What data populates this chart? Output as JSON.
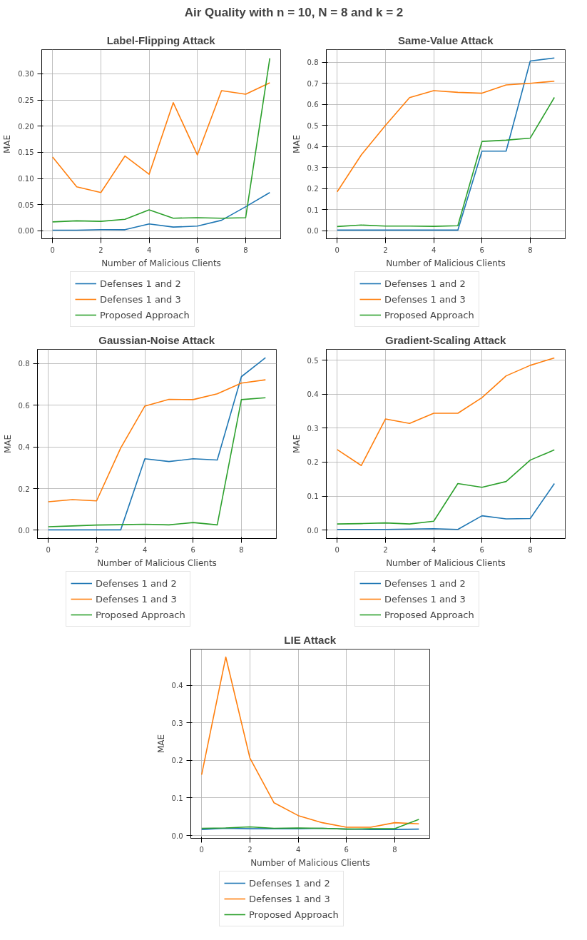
{
  "chart_data": [
    {
      "type": "other",
      "title": "Air Quality with n = 10, N = 8 and k = 2"
    },
    {
      "type": "line",
      "title": "Label-Flipping Attack",
      "xlabel": "Number of Malicious Clients",
      "ylabel": "MAE",
      "x": [
        0,
        1,
        2,
        3,
        4,
        5,
        6,
        7,
        8,
        9
      ],
      "xlim": [
        -0.45,
        9.45
      ],
      "xticks": [
        0,
        2,
        4,
        6,
        8
      ],
      "ylim": [
        -0.0153,
        0.3464
      ],
      "yticks": [
        {
          "value": 0,
          "label": "0.00"
        },
        {
          "value": 0.05,
          "label": "0.05"
        },
        {
          "value": 0.1,
          "label": "0.10"
        },
        {
          "value": 0.15,
          "label": "0.15"
        },
        {
          "value": 0.2,
          "label": "0.20"
        },
        {
          "value": 0.25,
          "label": "0.25"
        },
        {
          "value": 0.3,
          "label": "0.30"
        }
      ],
      "grid": true,
      "legend": "bottom",
      "series": [
        {
          "name": "Defenses 1 and 2",
          "color": "#1f77b4",
          "values": [
            0.001,
            0.001,
            0.002,
            0.002,
            0.013,
            0.007,
            0.009,
            0.02,
            0.046,
            0.073
          ]
        },
        {
          "name": "Defenses 1 and 3",
          "color": "#ff7f0e",
          "values": [
            0.141,
            0.084,
            0.073,
            0.143,
            0.108,
            0.245,
            0.145,
            0.268,
            0.261,
            0.283
          ]
        },
        {
          "name": "Proposed Approach",
          "color": "#2ca02c",
          "values": [
            0.017,
            0.019,
            0.018,
            0.022,
            0.04,
            0.024,
            0.025,
            0.024,
            0.025,
            0.33
          ]
        }
      ]
    },
    {
      "type": "line",
      "title": "Same-Value Attack",
      "xlabel": "Number of Malicious Clients",
      "ylabel": "MAE",
      "x": [
        0,
        1,
        2,
        3,
        4,
        5,
        6,
        7,
        8,
        9
      ],
      "xlim": [
        -0.45,
        9.45
      ],
      "xticks": [
        0,
        2,
        4,
        6,
        8
      ],
      "ylim": [
        -0.038,
        0.86
      ],
      "yticks": [
        {
          "value": 0,
          "label": "0.0"
        },
        {
          "value": 0.1,
          "label": "0.1"
        },
        {
          "value": 0.2,
          "label": "0.2"
        },
        {
          "value": 0.3,
          "label": "0.3"
        },
        {
          "value": 0.4,
          "label": "0.4"
        },
        {
          "value": 0.5,
          "label": "0.5"
        },
        {
          "value": 0.6,
          "label": "0.6"
        },
        {
          "value": 0.7,
          "label": "0.7"
        },
        {
          "value": 0.8,
          "label": "0.8"
        }
      ],
      "grid": true,
      "legend": "bottom",
      "series": [
        {
          "name": "Defenses 1 and 2",
          "color": "#1f77b4",
          "values": [
            0.003,
            0.003,
            0.003,
            0.003,
            0.003,
            0.003,
            0.378,
            0.378,
            0.806,
            0.82
          ]
        },
        {
          "name": "Defenses 1 and 3",
          "color": "#ff7f0e",
          "values": [
            0.185,
            0.36,
            0.5,
            0.632,
            0.665,
            0.657,
            0.653,
            0.692,
            0.7,
            0.71
          ]
        },
        {
          "name": "Proposed Approach",
          "color": "#2ca02c",
          "values": [
            0.02,
            0.027,
            0.022,
            0.022,
            0.021,
            0.024,
            0.424,
            0.43,
            0.44,
            0.633
          ]
        }
      ]
    },
    {
      "type": "line",
      "title": "Gaussian-Noise Attack",
      "xlabel": "Number of Malicious Clients",
      "ylabel": "MAE",
      "x": [
        0,
        1,
        2,
        3,
        4,
        5,
        6,
        7,
        8,
        9
      ],
      "xlim": [
        -0.45,
        9.45
      ],
      "xticks": [
        0,
        2,
        4,
        6,
        8
      ],
      "ylim": [
        -0.0395,
        0.868
      ],
      "yticks": [
        {
          "value": 0,
          "label": "0.0"
        },
        {
          "value": 0.2,
          "label": "0.2"
        },
        {
          "value": 0.4,
          "label": "0.4"
        },
        {
          "value": 0.6,
          "label": "0.6"
        },
        {
          "value": 0.8,
          "label": "0.8"
        }
      ],
      "grid": true,
      "legend": "bottom",
      "series": [
        {
          "name": "Defenses 1 and 2",
          "color": "#1f77b4",
          "values": [
            0.002,
            0.002,
            0.002,
            0.002,
            0.343,
            0.33,
            0.343,
            0.337,
            0.737,
            0.828
          ]
        },
        {
          "name": "Defenses 1 and 3",
          "color": "#ff7f0e",
          "values": [
            0.137,
            0.147,
            0.141,
            0.395,
            0.596,
            0.628,
            0.627,
            0.655,
            0.706,
            0.722
          ]
        },
        {
          "name": "Proposed Approach",
          "color": "#2ca02c",
          "values": [
            0.017,
            0.021,
            0.025,
            0.027,
            0.029,
            0.026,
            0.037,
            0.026,
            0.627,
            0.636
          ]
        }
      ]
    },
    {
      "type": "line",
      "title": "Gradient-Scaling Attack",
      "xlabel": "Number of Malicious Clients",
      "ylabel": "MAE",
      "x": [
        0,
        1,
        2,
        3,
        4,
        5,
        6,
        7,
        8,
        9
      ],
      "xlim": [
        -0.45,
        9.45
      ],
      "xticks": [
        0,
        2,
        4,
        6,
        8
      ],
      "ylim": [
        -0.0249,
        0.532
      ],
      "yticks": [
        {
          "value": 0,
          "label": "0.0"
        },
        {
          "value": 0.1,
          "label": "0.1"
        },
        {
          "value": 0.2,
          "label": "0.2"
        },
        {
          "value": 0.3,
          "label": "0.3"
        },
        {
          "value": 0.4,
          "label": "0.4"
        },
        {
          "value": 0.5,
          "label": "0.5"
        }
      ],
      "grid": true,
      "legend": "bottom",
      "series": [
        {
          "name": "Defenses 1 and 2",
          "color": "#1f77b4",
          "values": [
            0.002,
            0.002,
            0.002,
            0.003,
            0.004,
            0.002,
            0.042,
            0.033,
            0.034,
            0.137
          ]
        },
        {
          "name": "Defenses 1 and 3",
          "color": "#ff7f0e",
          "values": [
            0.237,
            0.19,
            0.327,
            0.314,
            0.344,
            0.344,
            0.39,
            0.454,
            0.485,
            0.507
          ]
        },
        {
          "name": "Proposed Approach",
          "color": "#2ca02c",
          "values": [
            0.018,
            0.019,
            0.021,
            0.018,
            0.026,
            0.137,
            0.126,
            0.143,
            0.206,
            0.236
          ]
        }
      ]
    },
    {
      "type": "line",
      "title": "LIE Attack",
      "xlabel": "Number of Malicious Clients",
      "ylabel": "MAE",
      "x": [
        0,
        1,
        2,
        3,
        4,
        5,
        6,
        7,
        8,
        9
      ],
      "xlim": [
        -0.45,
        9.45
      ],
      "xticks": [
        0,
        2,
        4,
        6,
        8
      ],
      "ylim": [
        -0.0075,
        0.496
      ],
      "yticks": [
        {
          "value": 0,
          "label": "0.0"
        },
        {
          "value": 0.1,
          "label": "0.1"
        },
        {
          "value": 0.2,
          "label": "0.2"
        },
        {
          "value": 0.3,
          "label": "0.3"
        },
        {
          "value": 0.4,
          "label": "0.4"
        }
      ],
      "grid": true,
      "legend": "bottom",
      "series": [
        {
          "name": "Defenses 1 and 2",
          "color": "#1f77b4",
          "values": [
            0.016,
            0.019,
            0.018,
            0.018,
            0.018,
            0.019,
            0.017,
            0.016,
            0.016,
            0.017
          ]
        },
        {
          "name": "Defenses 1 and 3",
          "color": "#ff7f0e",
          "values": [
            0.162,
            0.475,
            0.206,
            0.087,
            0.053,
            0.034,
            0.022,
            0.022,
            0.034,
            0.031
          ]
        },
        {
          "name": "Proposed Approach",
          "color": "#2ca02c",
          "values": [
            0.019,
            0.02,
            0.023,
            0.019,
            0.02,
            0.019,
            0.017,
            0.018,
            0.018,
            0.043
          ]
        }
      ]
    }
  ]
}
